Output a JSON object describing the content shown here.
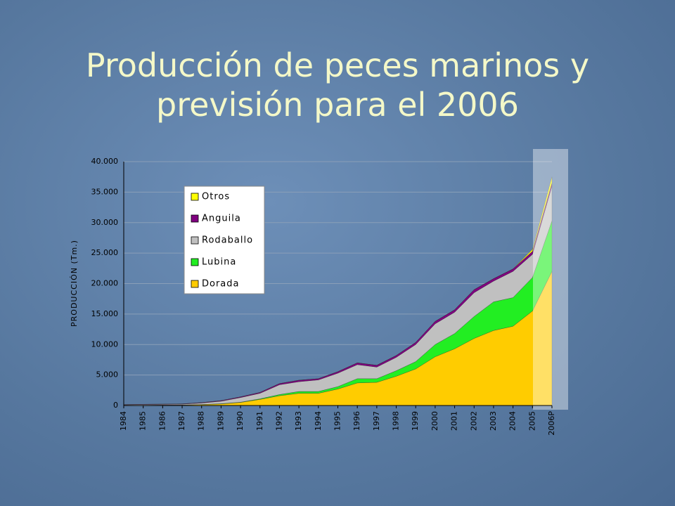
{
  "chart_data": {
    "type": "stacked-area",
    "title": "Producción de peces marinos y previsión para el 2006",
    "y_label": "PRODUCCIÓN (Tm.)",
    "categories": [
      "1984",
      "1985",
      "1986",
      "1987",
      "1988",
      "1989",
      "1990",
      "1991",
      "1992",
      "1993",
      "1994",
      "1995",
      "1996",
      "1997",
      "1998",
      "1999",
      "2000",
      "2001",
      "2002",
      "2003",
      "2004",
      "2005",
      "2006P"
    ],
    "series": [
      {
        "name": "Dorada",
        "color": "#ffcc00",
        "values": [
          0,
          50,
          80,
          100,
          150,
          250,
          500,
          1000,
          1600,
          2000,
          2000,
          2700,
          3700,
          3800,
          4800,
          6000,
          8000,
          9300,
          11000,
          12300,
          13000,
          15500,
          22000
        ]
      },
      {
        "name": "Lubina",
        "color": "#22ee22",
        "values": [
          0,
          0,
          0,
          0,
          20,
          50,
          50,
          100,
          200,
          300,
          300,
          400,
          700,
          600,
          900,
          1200,
          2000,
          2500,
          3600,
          4700,
          4700,
          5500,
          8300
        ]
      },
      {
        "name": "Rodaballo",
        "color": "#c0c0c0",
        "values": [
          100,
          100,
          100,
          120,
          230,
          400,
          750,
          900,
          1600,
          1600,
          1900,
          2200,
          2300,
          1900,
          2200,
          2800,
          3400,
          3500,
          3900,
          3400,
          4300,
          3800,
          5700
        ]
      },
      {
        "name": "Anguila",
        "color": "#800080",
        "values": [
          50,
          50,
          50,
          50,
          80,
          100,
          120,
          150,
          200,
          250,
          200,
          250,
          300,
          300,
          300,
          350,
          400,
          400,
          500,
          400,
          400,
          500,
          500
        ]
      },
      {
        "name": "Otros",
        "color": "#ffff00",
        "values": [
          0,
          0,
          0,
          0,
          0,
          0,
          0,
          0,
          0,
          0,
          0,
          0,
          0,
          0,
          0,
          0,
          0,
          0,
          0,
          0,
          0,
          300,
          1000
        ]
      }
    ],
    "ylim": [
      0,
      40000
    ],
    "yticks": [
      0,
      {
        "value": 5000,
        "label": "5.000"
      },
      {
        "value": 10000,
        "label": "10.000"
      },
      {
        "value": 15000,
        "label": "15.000"
      },
      {
        "value": 20000,
        "label": "20.000"
      },
      {
        "value": 25000,
        "label": "25.000"
      },
      {
        "value": 30000,
        "label": "30.000"
      },
      {
        "value": 35000,
        "label": "35.000"
      },
      {
        "value": 40000,
        "label": "40.000"
      }
    ],
    "grid": true,
    "legend": "upper-left"
  }
}
